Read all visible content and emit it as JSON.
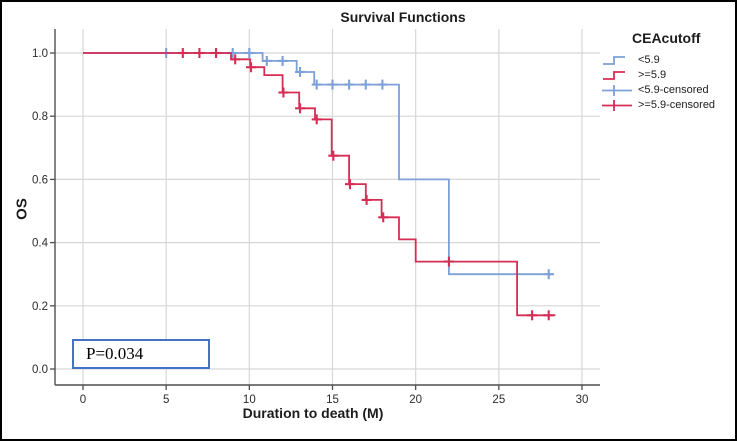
{
  "chart_data": {
    "type": "line",
    "subtype": "kaplan-meier-step-survival",
    "title": "Survival Functions",
    "xlabel": "Duration to death (M)",
    "ylabel": "OS",
    "xlim": [
      0,
      31
    ],
    "ylim": [
      0,
      1.05
    ],
    "grid": true,
    "x_ticks": [
      0,
      5,
      10,
      15,
      20,
      25,
      30
    ],
    "x_tick_labels": [
      "0",
      "5",
      "10",
      "15",
      "20",
      "25",
      "30"
    ],
    "y_ticks": [
      1.0,
      0.8,
      0.6,
      0.4,
      0.2,
      0.0
    ],
    "y_tick_labels": [
      "1.0",
      "0.8",
      "0.6",
      "0.4",
      "0.2",
      "0.0"
    ],
    "legend_title": "CEAcutoff",
    "legend_position": "right",
    "annotation": {
      "text": "P=0.034"
    },
    "colors": {
      "blue": "#7da0d7",
      "red": "#d62d55",
      "pbox_border": "#4472c4",
      "grid": "#d7d7d7",
      "axis": "#4f4f4f"
    },
    "series": [
      {
        "name": "<5.9",
        "color": "#7da0d7",
        "steps": [
          [
            0,
            1.0
          ],
          [
            10.8,
            1.0
          ],
          [
            10.8,
            0.975
          ],
          [
            12.85,
            0.975
          ],
          [
            12.85,
            0.94
          ],
          [
            13.9,
            0.94
          ],
          [
            13.9,
            0.9
          ],
          [
            19,
            0.9
          ],
          [
            19,
            0.6
          ],
          [
            22,
            0.6
          ],
          [
            22,
            0.3
          ],
          [
            28.3,
            0.3
          ]
        ],
        "censored": [
          [
            5,
            1.0
          ],
          [
            9,
            1.0
          ],
          [
            10,
            1.0
          ],
          [
            11.05,
            0.975
          ],
          [
            12,
            0.975
          ],
          [
            13.05,
            0.94
          ],
          [
            14.05,
            0.9
          ],
          [
            15,
            0.9
          ],
          [
            16,
            0.9
          ],
          [
            17,
            0.9
          ],
          [
            18,
            0.9
          ],
          [
            28,
            0.3
          ]
        ]
      },
      {
        "name": ">=5.9",
        "color": "#d62d55",
        "steps": [
          [
            0,
            1.0
          ],
          [
            8.9,
            1.0
          ],
          [
            8.9,
            0.98
          ],
          [
            10.05,
            0.98
          ],
          [
            10.05,
            0.955
          ],
          [
            10.9,
            0.955
          ],
          [
            10.9,
            0.93
          ],
          [
            12,
            0.93
          ],
          [
            12,
            0.875
          ],
          [
            13,
            0.875
          ],
          [
            13,
            0.825
          ],
          [
            13.95,
            0.825
          ],
          [
            13.95,
            0.79
          ],
          [
            14.95,
            0.79
          ],
          [
            14.95,
            0.675
          ],
          [
            16,
            0.675
          ],
          [
            16,
            0.585
          ],
          [
            17,
            0.585
          ],
          [
            17,
            0.535
          ],
          [
            17.95,
            0.535
          ],
          [
            17.95,
            0.48
          ],
          [
            19,
            0.48
          ],
          [
            19,
            0.41
          ],
          [
            20,
            0.41
          ],
          [
            20,
            0.34
          ],
          [
            26.1,
            0.34
          ],
          [
            26.1,
            0.17
          ],
          [
            28.4,
            0.17
          ]
        ],
        "censored": [
          [
            6,
            1.0
          ],
          [
            7,
            1.0
          ],
          [
            8,
            1.0
          ],
          [
            9.15,
            0.98
          ],
          [
            10.1,
            0.955
          ],
          [
            12.05,
            0.875
          ],
          [
            13.05,
            0.825
          ],
          [
            14.05,
            0.79
          ],
          [
            15.05,
            0.675
          ],
          [
            16.05,
            0.585
          ],
          [
            17.05,
            0.535
          ],
          [
            18.05,
            0.48
          ],
          [
            22,
            0.34
          ],
          [
            27,
            0.17
          ],
          [
            28,
            0.17
          ]
        ]
      }
    ],
    "legend_entries": [
      {
        "label": "<5.9",
        "glyph": "step",
        "color_key": "blue"
      },
      {
        "label": ">=5.9",
        "glyph": "step",
        "color_key": "red"
      },
      {
        "label": "<5.9-censored",
        "glyph": "plus",
        "color_key": "blue"
      },
      {
        "label": ">=5.9-censored",
        "glyph": "plus",
        "color_key": "red"
      }
    ]
  }
}
